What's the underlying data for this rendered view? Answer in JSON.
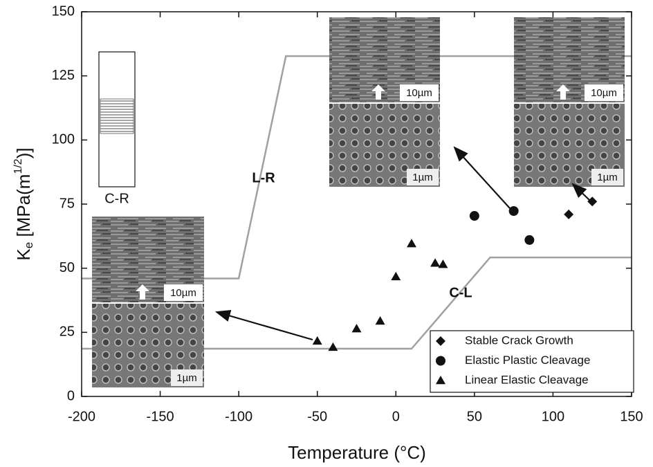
{
  "chart_data": {
    "type": "scatter",
    "xlabel": "Temperature (°C)",
    "ylabel": {
      "base": "K",
      "sub": "e",
      "unit": " [MPa(m",
      "sup": "1/2",
      "close": ")]"
    },
    "xlim": [
      -200,
      150
    ],
    "ylim": [
      0,
      150
    ],
    "xticks": [
      -200,
      -150,
      -100,
      -50,
      0,
      50,
      100,
      150
    ],
    "yticks": [
      0,
      25,
      50,
      75,
      100,
      125,
      150
    ],
    "grid": false,
    "legend": "lower right",
    "series": [
      {
        "name": "Stable Crack Growth",
        "marker": "diamond",
        "color": "#111111",
        "x": [
          110,
          125
        ],
        "values": [
          71,
          76
        ]
      },
      {
        "name": "Elastic Plastic Cleavage",
        "marker": "circle",
        "color": "#111111",
        "x": [
          50,
          75,
          85
        ],
        "values": [
          70.4,
          72.3,
          61
        ]
      },
      {
        "name": "Linear Elastic Cleavage",
        "marker": "triangle",
        "color": "#111111",
        "x": [
          -50,
          -40,
          -25,
          -10,
          0,
          10,
          25,
          30
        ],
        "values": [
          21.6,
          19.2,
          26.4,
          29.4,
          46.7,
          59.6,
          52,
          51.5
        ]
      }
    ],
    "curves": [
      {
        "name": "L-R",
        "color": "#a0a0a0",
        "x": [
          -200,
          -100,
          -70,
          150
        ],
        "values": [
          46,
          46,
          132.7,
          132.7
        ]
      },
      {
        "name": "C-L",
        "color": "#a0a0a0",
        "x": [
          -200,
          10,
          60,
          150
        ],
        "values": [
          18.6,
          18.6,
          54.2,
          54.2
        ]
      }
    ],
    "inset_label": "C-R",
    "micrographs": [
      {
        "upper_scale": "10µm",
        "lower_scale": "1µm"
      },
      {
        "upper_scale": "10µm",
        "lower_scale": "1µm"
      },
      {
        "upper_scale": "10µm",
        "lower_scale": "1µm"
      }
    ]
  }
}
